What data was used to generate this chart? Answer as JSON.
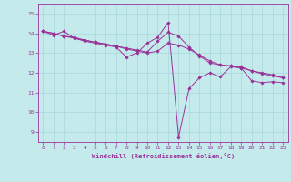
{
  "xlabel": "Windchill (Refroidissement éolien,°C)",
  "xlim": [
    -0.5,
    23.5
  ],
  "ylim": [
    8.5,
    15.5
  ],
  "yticks": [
    9,
    10,
    11,
    12,
    13,
    14,
    15
  ],
  "xticks": [
    0,
    1,
    2,
    3,
    4,
    5,
    6,
    7,
    8,
    9,
    10,
    11,
    12,
    13,
    14,
    15,
    16,
    17,
    18,
    19,
    20,
    21,
    22,
    23
  ],
  "background_color": "#c5eaec",
  "grid_color": "#a8d8dc",
  "line_color": "#993399",
  "series1_x": [
    0,
    1,
    2,
    3,
    4,
    5,
    6,
    7,
    8,
    9,
    10,
    11,
    12,
    13,
    14,
    15,
    16,
    17,
    18,
    19,
    20,
    21,
    22,
    23
  ],
  "series1_y": [
    14.1,
    13.9,
    14.1,
    13.75,
    13.6,
    13.5,
    13.4,
    13.3,
    12.8,
    13.0,
    13.5,
    13.8,
    14.55,
    8.75,
    11.2,
    11.75,
    12.0,
    11.8,
    12.3,
    12.25,
    11.6,
    11.5,
    11.55,
    11.5
  ],
  "series2_x": [
    0,
    1,
    2,
    3,
    4,
    5,
    6,
    7,
    8,
    9,
    10,
    11,
    12,
    13,
    14,
    15,
    16,
    17,
    18,
    19,
    20,
    21,
    22,
    23
  ],
  "series2_y": [
    14.1,
    14.0,
    13.85,
    13.8,
    13.65,
    13.55,
    13.45,
    13.35,
    13.25,
    13.15,
    13.05,
    13.6,
    14.05,
    13.85,
    13.3,
    12.85,
    12.5,
    12.4,
    12.35,
    12.3,
    12.1,
    12.0,
    11.9,
    11.75
  ],
  "series3_x": [
    0,
    1,
    2,
    3,
    4,
    5,
    6,
    7,
    8,
    9,
    10,
    11,
    12,
    13,
    14,
    15,
    16,
    17,
    18,
    19,
    20,
    21,
    22,
    23
  ],
  "series3_y": [
    14.1,
    14.0,
    13.85,
    13.75,
    13.65,
    13.55,
    13.45,
    13.35,
    13.2,
    13.1,
    13.0,
    13.1,
    13.5,
    13.4,
    13.2,
    12.9,
    12.6,
    12.4,
    12.35,
    12.25,
    12.1,
    11.95,
    11.85,
    11.75
  ]
}
